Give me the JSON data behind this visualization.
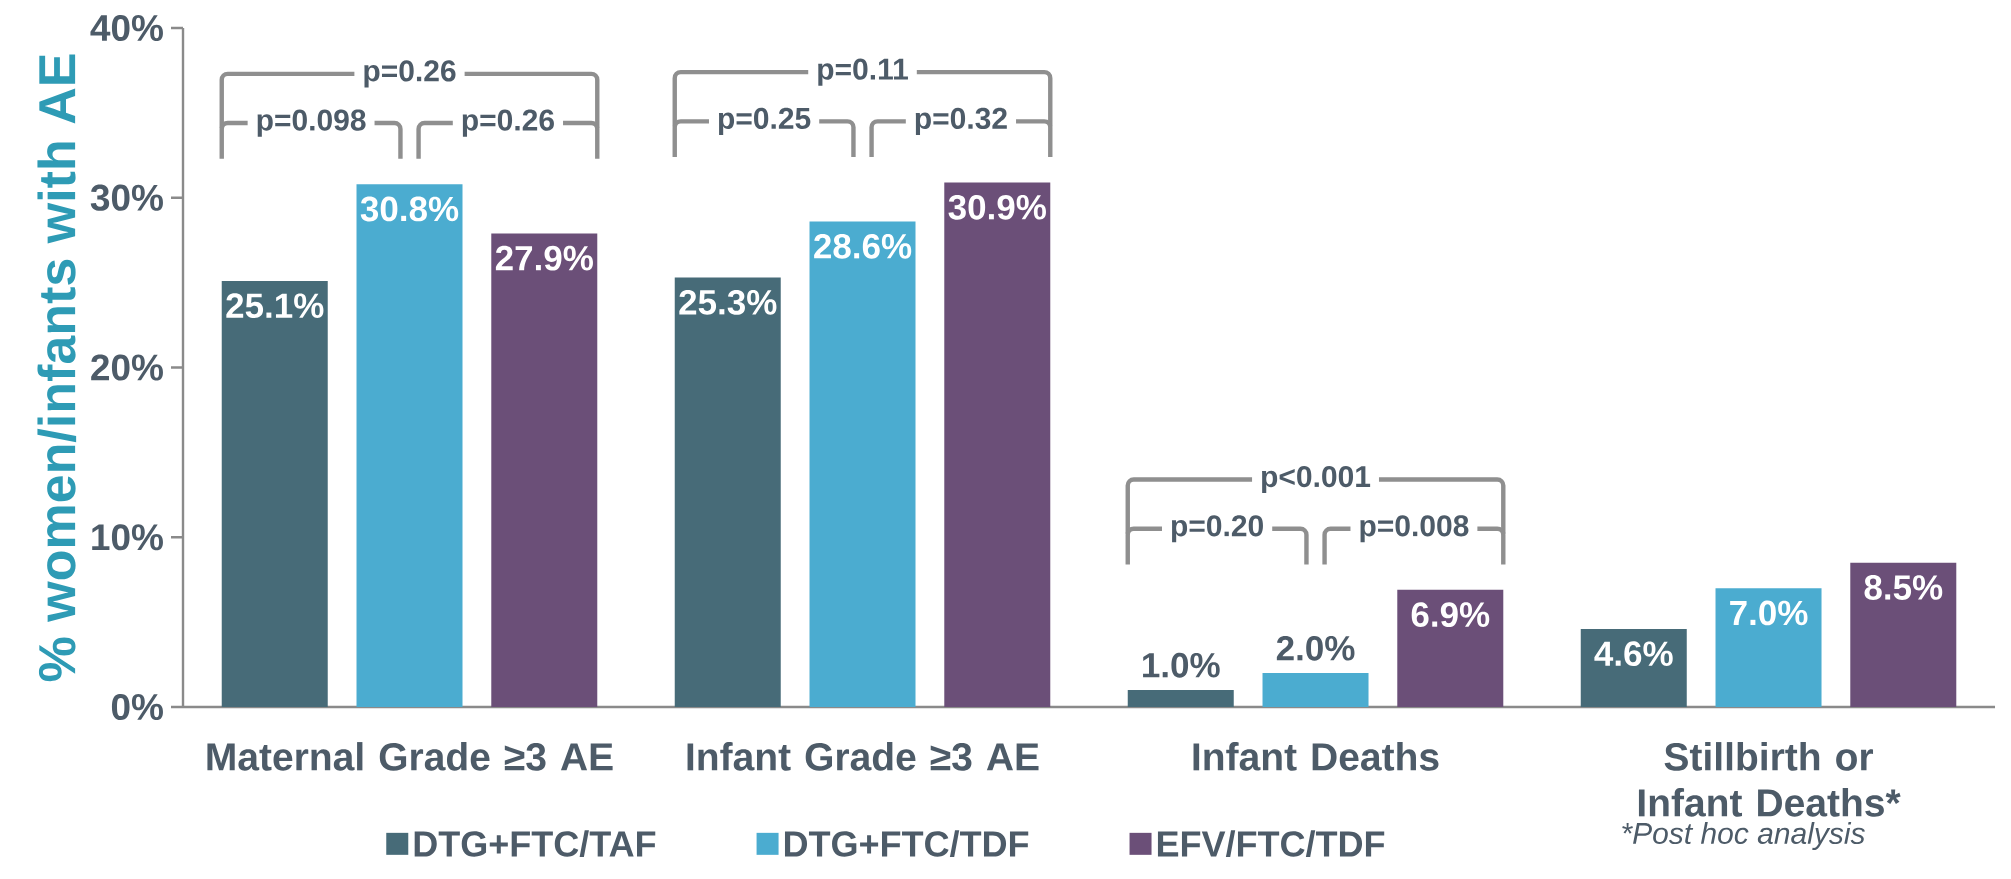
{
  "chart_data": {
    "type": "bar",
    "ylabel": "% women/infants with AE",
    "categories": [
      "Maternal Grade ≥3 AE",
      "Infant Grade ≥3 AE",
      "Infant Deaths",
      "Stillbirth or Infant Deaths*"
    ],
    "series": [
      {
        "name": "DTG+FTC/TAF",
        "color": "#476b78",
        "values": [
          25.1,
          25.3,
          1.0,
          4.6
        ],
        "value_labels": [
          "25.1%",
          "25.3%",
          "1.0%",
          "4.6%"
        ]
      },
      {
        "name": "DTG+FTC/TDF",
        "color": "#4bacd0",
        "values": [
          30.8,
          28.6,
          2.0,
          7.0
        ],
        "value_labels": [
          "30.8%",
          "28.6%",
          "2.0%",
          "7.0%"
        ]
      },
      {
        "name": "EFV/FTC/TDF",
        "color": "#6b4f78",
        "values": [
          27.9,
          30.9,
          6.9,
          8.5
        ],
        "value_labels": [
          "27.9%",
          "30.9%",
          "6.9%",
          "8.5%"
        ]
      }
    ],
    "ylim": [
      0,
      40
    ],
    "yticks": [
      {
        "value": 0,
        "label": "0%"
      },
      {
        "value": 10,
        "label": "10%"
      },
      {
        "value": 20,
        "label": "20%"
      },
      {
        "value": 30,
        "label": "30%"
      },
      {
        "value": 40,
        "label": "40%"
      }
    ],
    "legend": "bottom",
    "annotations": [
      "p=0.26",
      "p=0.098",
      "p=0.26",
      "p=0.11",
      "p=0.25",
      "p=0.32",
      "p<0.001",
      "p=0.20",
      "p=0.008",
      "*Post hoc analysis"
    ]
  }
}
